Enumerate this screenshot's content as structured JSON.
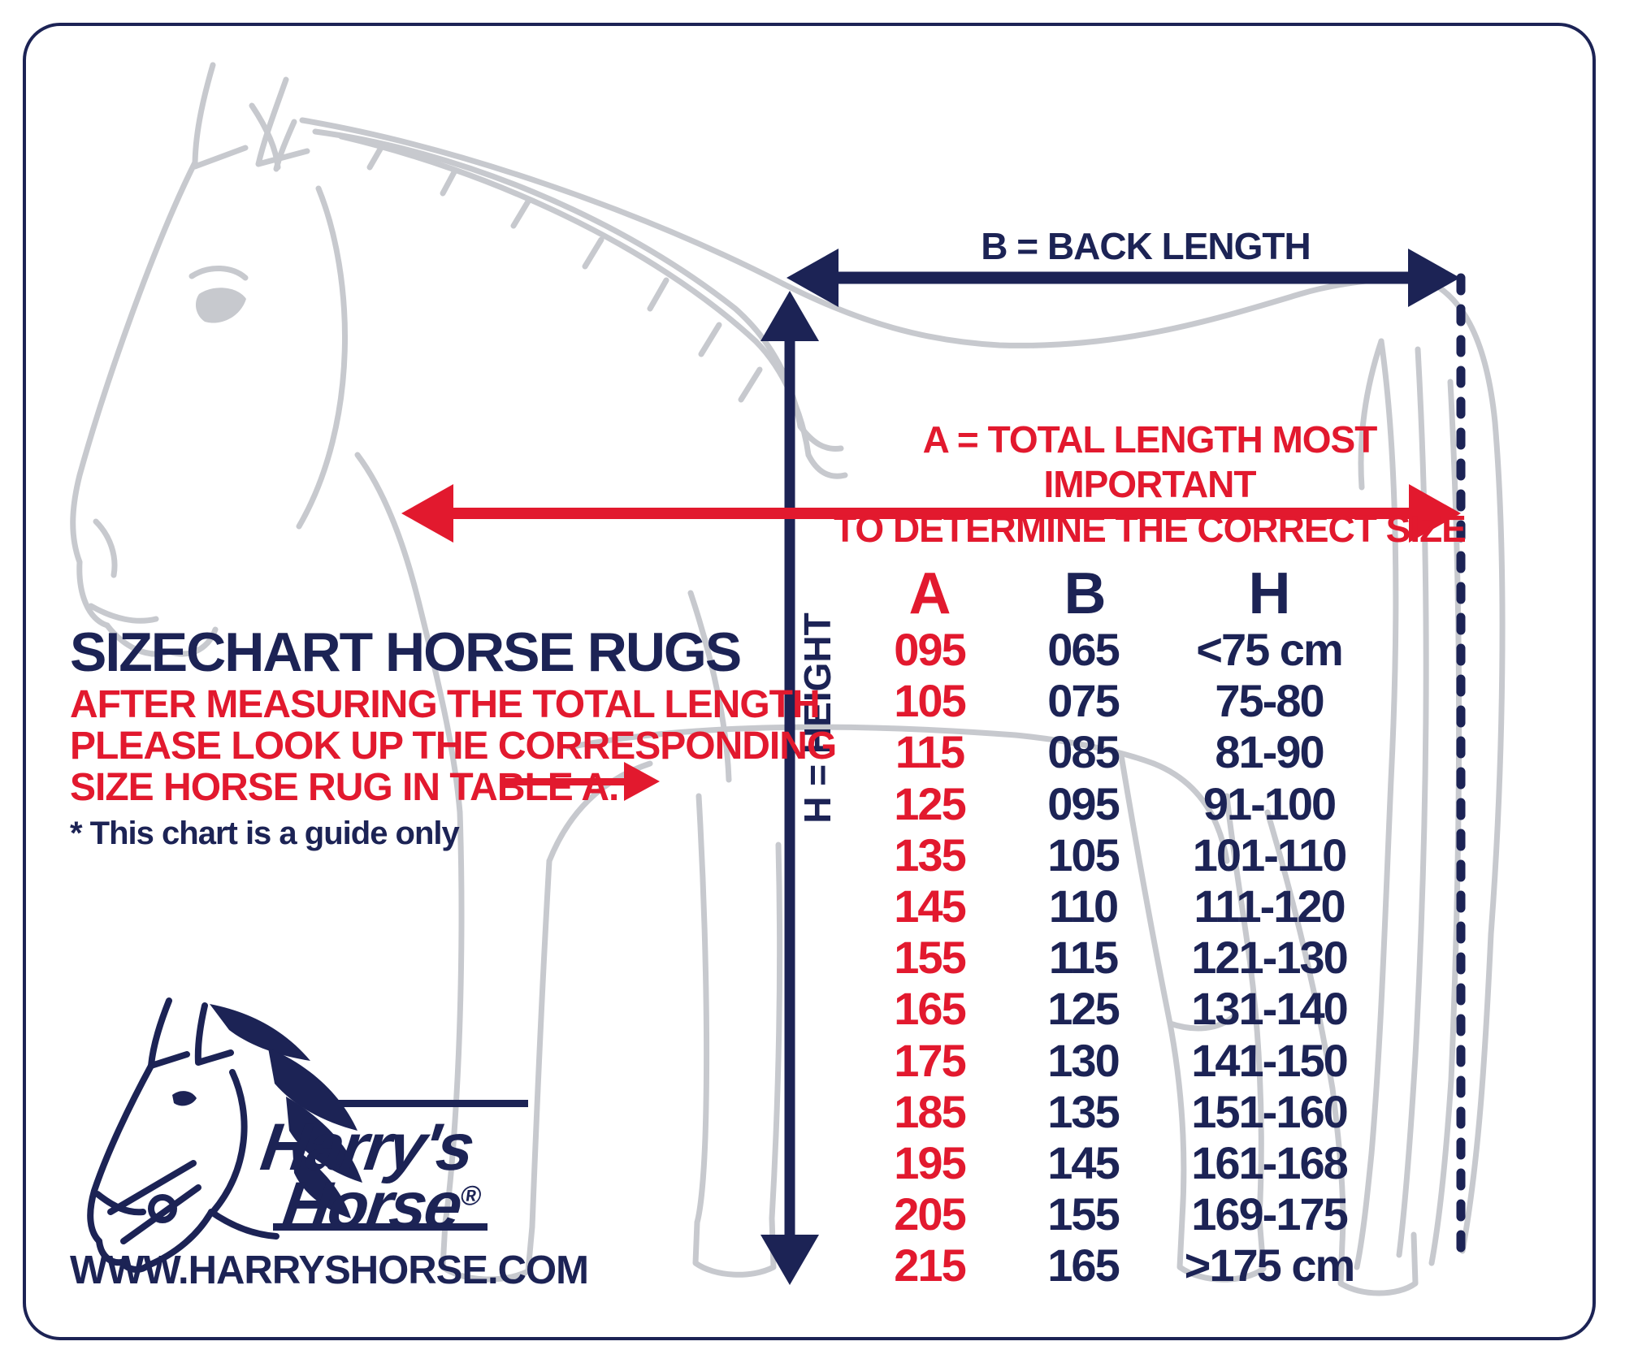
{
  "diagram": {
    "b_arrow_label": "B = BACK LENGTH",
    "a_arrow_label_line1": "A = TOTAL LENGTH MOST IMPORTANT",
    "a_arrow_label_line2": "TO DETERMINE THE CORRECT SIZE",
    "h_arrow_label": "H = HEIGHT"
  },
  "info": {
    "title": "SIZECHART HORSE RUGS",
    "instruction_line1": "AFTER MEASURING THE TOTAL LENGTH",
    "instruction_line2": "PLEASE LOOK UP THE CORRESPONDING",
    "instruction_line3": "SIZE HORSE RUG IN TABLE A.",
    "note": "* This chart is a guide only"
  },
  "size_table": {
    "headers": {
      "a": "A",
      "b": "B",
      "h": "H"
    },
    "rows": [
      [
        "095",
        "065",
        "<75 cm"
      ],
      [
        "105",
        "075",
        "75-80"
      ],
      [
        "115",
        "085",
        "81-90"
      ],
      [
        "125",
        "095",
        "91-100"
      ],
      [
        "135",
        "105",
        "101-110"
      ],
      [
        "145",
        "110",
        "111-120"
      ],
      [
        "155",
        "115",
        "121-130"
      ],
      [
        "165",
        "125",
        "131-140"
      ],
      [
        "175",
        "130",
        "141-150"
      ],
      [
        "185",
        "135",
        "151-160"
      ],
      [
        "195",
        "145",
        "161-168"
      ],
      [
        "205",
        "155",
        "169-175"
      ],
      [
        "215",
        "165",
        ">175 cm"
      ]
    ]
  },
  "logo": {
    "brand_line1": "Harry's",
    "brand_line2": "Horse",
    "registered_mark": "®",
    "website": "WWW.HARRYSHORSE.COM"
  },
  "colors": {
    "navy": "#1c2355",
    "red": "#e2192e",
    "line_art_gray": "#c7c9ce",
    "background": "#ffffff"
  }
}
